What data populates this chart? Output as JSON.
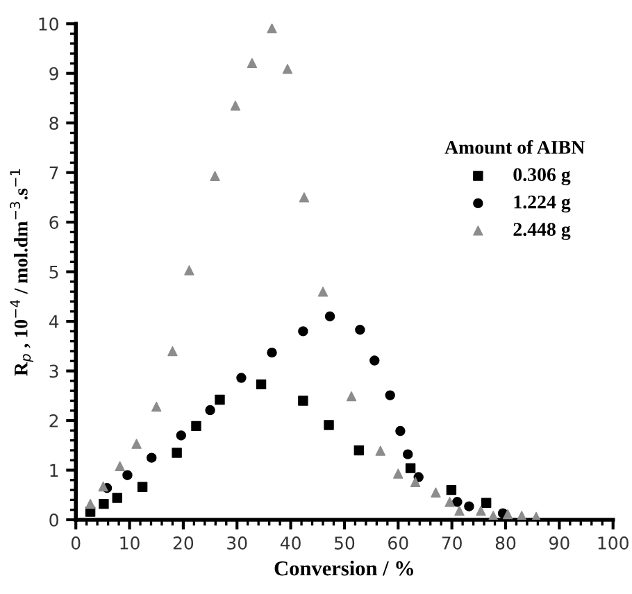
{
  "chart_data": {
    "type": "scatter",
    "xlabel": "Conversion / %",
    "ylabel": "R$_{p}$ , 10$^{−4}$ / mol.dm$^{−3}$.s$^{−1}$",
    "legend_title": "Amount of AIBN",
    "xlim": [
      0,
      100
    ],
    "xticks": [
      0,
      10,
      20,
      30,
      40,
      50,
      60,
      70,
      80,
      90,
      100
    ],
    "ylim": [
      0,
      10
    ],
    "yticks": [
      0,
      1,
      2,
      3,
      4,
      5,
      6,
      7,
      8,
      9,
      10
    ],
    "grid": false,
    "legend": "top right",
    "series": [
      {
        "name": "0.306 g",
        "color": "#000000",
        "marker": "square",
        "x": [
          2.7,
          5.2,
          7.7,
          12.4,
          18.8,
          22.4,
          26.8,
          34.5,
          42.3,
          47.1,
          52.7,
          62.3,
          69.9,
          76.4
        ],
        "values": [
          0.16,
          0.32,
          0.44,
          0.66,
          1.35,
          1.89,
          2.42,
          2.73,
          2.4,
          1.91,
          1.4,
          1.04,
          0.6,
          0.34
        ]
      },
      {
        "name": "1.224 g",
        "color": "#000000",
        "marker": "circle",
        "x": [
          5.8,
          9.6,
          14.1,
          19.6,
          25.0,
          30.8,
          36.5,
          42.3,
          47.3,
          52.9,
          55.6,
          58.5,
          60.4,
          61.8,
          63.8,
          71.0,
          73.2,
          75.9,
          79.5
        ],
        "values": [
          0.64,
          0.9,
          1.25,
          1.7,
          2.21,
          2.86,
          3.37,
          3.8,
          4.1,
          3.83,
          3.21,
          2.51,
          1.79,
          1.32,
          0.86,
          0.36,
          0.27,
          null,
          0.13
        ]
      },
      {
        "name": "2.448 g",
        "color": "#8c8c8c",
        "marker": "triangle",
        "x": [
          2.7,
          5.1,
          8.2,
          11.3,
          15.0,
          18.0,
          21.1,
          25.9,
          29.7,
          32.8,
          36.5,
          39.4,
          42.5,
          46.0,
          51.3,
          56.7,
          60.0,
          63.2,
          67.0,
          69.6,
          71.4,
          75.4,
          77.7,
          80.4,
          83.0,
          85.7
        ],
        "values": [
          0.32,
          0.67,
          1.08,
          1.53,
          2.28,
          3.4,
          5.03,
          6.93,
          8.35,
          9.21,
          9.91,
          9.09,
          6.5,
          4.6,
          2.49,
          1.39,
          0.93,
          0.76,
          0.55,
          0.36,
          0.18,
          0.18,
          0.08,
          0.11,
          0.08,
          0.06
        ]
      }
    ]
  }
}
